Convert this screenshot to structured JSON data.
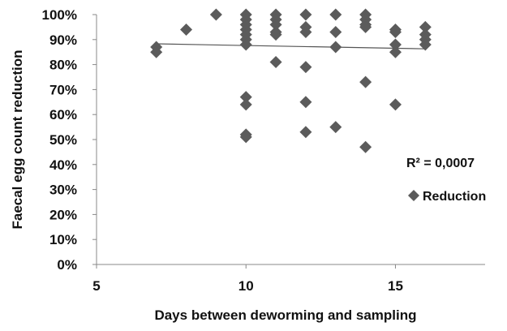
{
  "chart_data": {
    "type": "scatter",
    "title": "",
    "xlabel": "Days between deworming and sampling",
    "ylabel": "Faecal egg count reduction",
    "xlim": [
      5,
      18
    ],
    "ylim": [
      0,
      100
    ],
    "x_ticks": [
      5,
      10,
      15
    ],
    "x_tick_labels": [
      "5",
      "10",
      "15"
    ],
    "y_ticks": [
      0,
      10,
      20,
      30,
      40,
      50,
      60,
      70,
      80,
      90,
      100
    ],
    "y_tick_labels": [
      "0%",
      "10%",
      "20%",
      "30%",
      "40%",
      "50%",
      "60%",
      "70%",
      "80%",
      "90%",
      "100%"
    ],
    "grid": false,
    "legend_position": "right",
    "marker": "diamond",
    "colors": {
      "marker": "#5b5b5b",
      "trendline": "#555555",
      "axis": "#888888",
      "text": "#111111"
    },
    "series": [
      {
        "name": "Reduction",
        "points": [
          {
            "x": 7,
            "y": 87
          },
          {
            "x": 7,
            "y": 85
          },
          {
            "x": 8,
            "y": 94
          },
          {
            "x": 9,
            "y": 100
          },
          {
            "x": 10,
            "y": 100
          },
          {
            "x": 10,
            "y": 98
          },
          {
            "x": 10,
            "y": 96
          },
          {
            "x": 10,
            "y": 94
          },
          {
            "x": 10,
            "y": 92
          },
          {
            "x": 10,
            "y": 90
          },
          {
            "x": 10,
            "y": 88
          },
          {
            "x": 10,
            "y": 67
          },
          {
            "x": 10,
            "y": 64
          },
          {
            "x": 10,
            "y": 52
          },
          {
            "x": 10,
            "y": 51
          },
          {
            "x": 11,
            "y": 100
          },
          {
            "x": 11,
            "y": 98
          },
          {
            "x": 11,
            "y": 96
          },
          {
            "x": 11,
            "y": 93
          },
          {
            "x": 11,
            "y": 92
          },
          {
            "x": 11,
            "y": 81
          },
          {
            "x": 12,
            "y": 100
          },
          {
            "x": 12,
            "y": 95
          },
          {
            "x": 12,
            "y": 93
          },
          {
            "x": 12,
            "y": 79
          },
          {
            "x": 12,
            "y": 65
          },
          {
            "x": 12,
            "y": 53
          },
          {
            "x": 13,
            "y": 100
          },
          {
            "x": 13,
            "y": 93
          },
          {
            "x": 13,
            "y": 87
          },
          {
            "x": 13,
            "y": 55
          },
          {
            "x": 14,
            "y": 100
          },
          {
            "x": 14,
            "y": 98
          },
          {
            "x": 14,
            "y": 96
          },
          {
            "x": 14,
            "y": 95
          },
          {
            "x": 14,
            "y": 73
          },
          {
            "x": 14,
            "y": 47
          },
          {
            "x": 15,
            "y": 94
          },
          {
            "x": 15,
            "y": 93
          },
          {
            "x": 15,
            "y": 88
          },
          {
            "x": 15,
            "y": 85
          },
          {
            "x": 15,
            "y": 64
          },
          {
            "x": 16,
            "y": 95
          },
          {
            "x": 16,
            "y": 92
          },
          {
            "x": 16,
            "y": 90
          },
          {
            "x": 16,
            "y": 88
          }
        ]
      }
    ],
    "trendline": {
      "type": "linear",
      "from": {
        "x": 7,
        "y": 88.3
      },
      "to": {
        "x": 16,
        "y": 86.3
      },
      "label": "R² = 0,0007"
    }
  }
}
